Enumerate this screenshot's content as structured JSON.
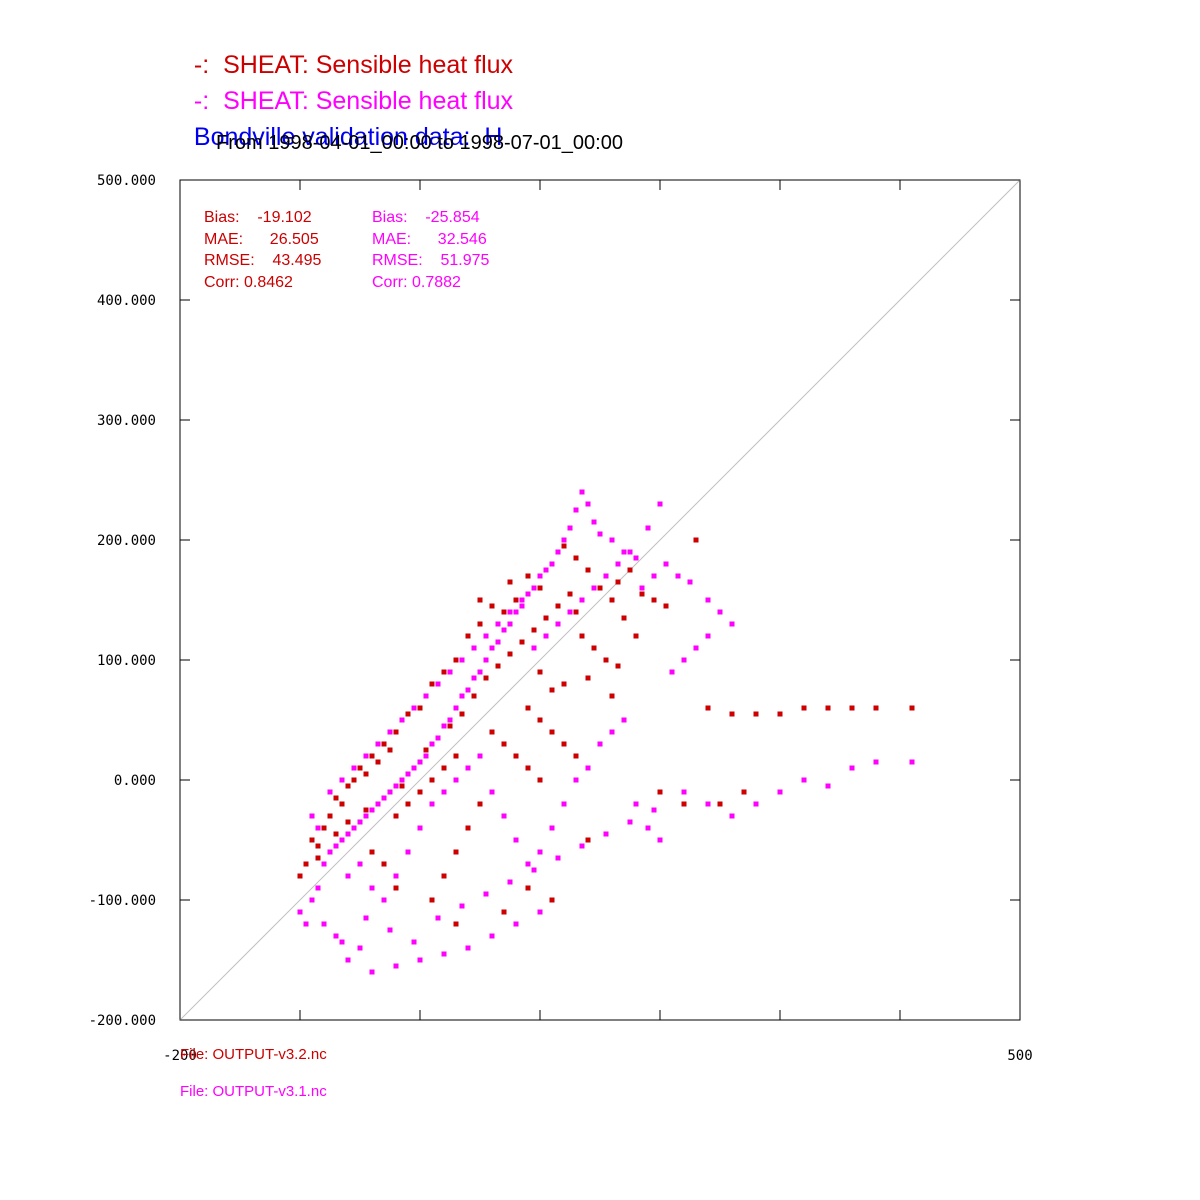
{
  "legend": {
    "series1": {
      "prefix": "-:",
      "label": "SHEAT: Sensible heat flux"
    },
    "series2": {
      "prefix": "-:",
      "label": "SHEAT: Sensible heat flux"
    },
    "obs": {
      "label": "Bondville validation data:  H"
    }
  },
  "subtitle": "From 1998-04-01_00:00 to 1998-07-01_00:00",
  "files": {
    "file1": "File: OUTPUT-v3.2.nc",
    "file2": "File: OUTPUT-v3.1.nc"
  },
  "stats": {
    "s1": {
      "bias": "Bias:    -19.102",
      "mae": "MAE:      26.505",
      "rmse": "RMSE:    43.495",
      "corr": "Corr: 0.8462"
    },
    "s2": {
      "bias": "Bias:    -25.854",
      "mae": "MAE:      32.546",
      "rmse": "RMSE:    51.975",
      "corr": "Corr: 0.7882"
    }
  },
  "colors": {
    "series1": "#cc0000",
    "series2": "#ff00ff",
    "obs": "#0000ee",
    "text": "#000000",
    "diagonal": "#c0c0c0"
  },
  "chart_data": {
    "type": "scatter",
    "xlim": [
      -200,
      500
    ],
    "ylim": [
      -200,
      500
    ],
    "x_tick_labels": [
      "-200",
      "500"
    ],
    "y_ticks": [
      500,
      400,
      300,
      200,
      100,
      0,
      -100,
      -200
    ],
    "y_tick_labels": [
      "500.000",
      "400.000",
      "300.000",
      "200.000",
      "100.000",
      "0.000",
      "-100.000",
      "-200.000"
    ],
    "diagonal": [
      [
        -200,
        -200
      ],
      [
        500,
        500
      ]
    ],
    "grid": false,
    "series": [
      {
        "name": "SHEAT: Sensible heat flux",
        "color": "#cc0000",
        "points": [
          [
            -100,
            -80
          ],
          [
            -95,
            -70
          ],
          [
            -90,
            -50
          ],
          [
            -85,
            -55
          ],
          [
            -80,
            -40
          ],
          [
            -75,
            -30
          ],
          [
            -70,
            -15
          ],
          [
            -65,
            -20
          ],
          [
            -60,
            -5
          ],
          [
            -55,
            0
          ],
          [
            -50,
            10
          ],
          [
            -45,
            5
          ],
          [
            -40,
            20
          ],
          [
            -35,
            15
          ],
          [
            -30,
            30
          ],
          [
            -25,
            25
          ],
          [
            -20,
            40
          ],
          [
            -10,
            55
          ],
          [
            0,
            60
          ],
          [
            10,
            80
          ],
          [
            20,
            90
          ],
          [
            30,
            100
          ],
          [
            40,
            120
          ],
          [
            50,
            130
          ],
          [
            60,
            110
          ],
          [
            70,
            140
          ],
          [
            80,
            150
          ],
          [
            90,
            170
          ],
          [
            100,
            160
          ],
          [
            110,
            180
          ],
          [
            120,
            195
          ],
          [
            130,
            185
          ],
          [
            140,
            175
          ],
          [
            150,
            160
          ],
          [
            160,
            150
          ],
          [
            170,
            135
          ],
          [
            180,
            120
          ],
          [
            100,
            90
          ],
          [
            110,
            75
          ],
          [
            120,
            80
          ],
          [
            140,
            85
          ],
          [
            160,
            70
          ],
          [
            60,
            40
          ],
          [
            70,
            30
          ],
          [
            80,
            20
          ],
          [
            90,
            10
          ],
          [
            100,
            0
          ],
          [
            50,
            -20
          ],
          [
            40,
            -40
          ],
          [
            30,
            -60
          ],
          [
            20,
            -80
          ],
          [
            -20,
            -30
          ],
          [
            -10,
            -20
          ],
          [
            0,
            -10
          ],
          [
            10,
            0
          ],
          [
            20,
            10
          ],
          [
            30,
            20
          ],
          [
            200,
            -10
          ],
          [
            220,
            -20
          ],
          [
            240,
            60
          ],
          [
            260,
            55
          ],
          [
            280,
            55
          ],
          [
            300,
            55
          ],
          [
            320,
            60
          ],
          [
            340,
            60
          ],
          [
            360,
            60
          ],
          [
            380,
            60
          ],
          [
            410,
            60
          ],
          [
            250,
            -20
          ],
          [
            270,
            -10
          ],
          [
            130,
            140
          ],
          [
            145,
            160
          ],
          [
            165,
            165
          ],
          [
            175,
            175
          ],
          [
            185,
            155
          ],
          [
            195,
            150
          ],
          [
            205,
            145
          ],
          [
            230,
            200
          ],
          [
            50,
            150
          ],
          [
            60,
            145
          ],
          [
            75,
            165
          ],
          [
            -85,
            -65
          ],
          [
            -70,
            -45
          ],
          [
            -60,
            -35
          ],
          [
            -45,
            -25
          ],
          [
            -30,
            -15
          ],
          [
            -15,
            -5
          ],
          [
            5,
            25
          ],
          [
            15,
            35
          ],
          [
            25,
            45
          ],
          [
            35,
            55
          ],
          [
            45,
            70
          ],
          [
            55,
            85
          ],
          [
            65,
            95
          ],
          [
            75,
            105
          ],
          [
            85,
            115
          ],
          [
            95,
            125
          ],
          [
            105,
            135
          ],
          [
            115,
            145
          ],
          [
            125,
            155
          ],
          [
            135,
            120
          ],
          [
            145,
            110
          ],
          [
            155,
            100
          ],
          [
            165,
            95
          ],
          [
            90,
            60
          ],
          [
            100,
            50
          ],
          [
            110,
            40
          ],
          [
            120,
            30
          ],
          [
            130,
            20
          ],
          [
            140,
            10
          ],
          [
            -40,
            -60
          ],
          [
            -30,
            -70
          ],
          [
            -20,
            -90
          ],
          [
            10,
            -100
          ],
          [
            30,
            -120
          ],
          [
            70,
            -110
          ],
          [
            90,
            -90
          ],
          [
            110,
            -100
          ],
          [
            140,
            -50
          ]
        ]
      },
      {
        "name": "SHEAT: Sensible heat flux",
        "color": "#ff00ff",
        "points": [
          [
            -100,
            -110
          ],
          [
            -95,
            -120
          ],
          [
            -90,
            -100
          ],
          [
            -85,
            -90
          ],
          [
            -80,
            -70
          ],
          [
            -75,
            -60
          ],
          [
            -70,
            -55
          ],
          [
            -65,
            -50
          ],
          [
            -60,
            -45
          ],
          [
            -55,
            -40
          ],
          [
            -50,
            -35
          ],
          [
            -45,
            -30
          ],
          [
            -40,
            -25
          ],
          [
            -35,
            -20
          ],
          [
            -30,
            -15
          ],
          [
            -25,
            -10
          ],
          [
            -20,
            -5
          ],
          [
            -15,
            0
          ],
          [
            -10,
            5
          ],
          [
            -5,
            10
          ],
          [
            0,
            15
          ],
          [
            5,
            20
          ],
          [
            10,
            30
          ],
          [
            15,
            35
          ],
          [
            20,
            45
          ],
          [
            25,
            50
          ],
          [
            30,
            60
          ],
          [
            35,
            70
          ],
          [
            40,
            75
          ],
          [
            45,
            85
          ],
          [
            50,
            90
          ],
          [
            55,
            100
          ],
          [
            60,
            110
          ],
          [
            65,
            115
          ],
          [
            70,
            125
          ],
          [
            75,
            130
          ],
          [
            80,
            140
          ],
          [
            85,
            145
          ],
          [
            90,
            155
          ],
          [
            95,
            160
          ],
          [
            100,
            170
          ],
          [
            105,
            175
          ],
          [
            110,
            180
          ],
          [
            115,
            190
          ],
          [
            120,
            200
          ],
          [
            125,
            210
          ],
          [
            130,
            225
          ],
          [
            135,
            240
          ],
          [
            140,
            230
          ],
          [
            145,
            215
          ],
          [
            150,
            205
          ],
          [
            160,
            200
          ],
          [
            170,
            190
          ],
          [
            180,
            185
          ],
          [
            190,
            210
          ],
          [
            200,
            230
          ],
          [
            -60,
            -150
          ],
          [
            -50,
            -140
          ],
          [
            -40,
            -160
          ],
          [
            -20,
            -155
          ],
          [
            0,
            -150
          ],
          [
            20,
            -145
          ],
          [
            40,
            -140
          ],
          [
            60,
            -130
          ],
          [
            80,
            -120
          ],
          [
            100,
            -110
          ],
          [
            -60,
            -80
          ],
          [
            -50,
            -70
          ],
          [
            -40,
            -90
          ],
          [
            -30,
            -100
          ],
          [
            -20,
            -80
          ],
          [
            -10,
            -60
          ],
          [
            0,
            -40
          ],
          [
            10,
            -20
          ],
          [
            20,
            -10
          ],
          [
            30,
            0
          ],
          [
            40,
            10
          ],
          [
            50,
            20
          ],
          [
            60,
            -10
          ],
          [
            70,
            -30
          ],
          [
            80,
            -50
          ],
          [
            90,
            -70
          ],
          [
            100,
            -60
          ],
          [
            110,
            -40
          ],
          [
            120,
            -20
          ],
          [
            130,
            0
          ],
          [
            140,
            10
          ],
          [
            150,
            30
          ],
          [
            160,
            40
          ],
          [
            170,
            50
          ],
          [
            180,
            -20
          ],
          [
            190,
            -40
          ],
          [
            200,
            -50
          ],
          [
            220,
            -10
          ],
          [
            240,
            -20
          ],
          [
            260,
            -30
          ],
          [
            280,
            -20
          ],
          [
            300,
            -10
          ],
          [
            320,
            0
          ],
          [
            340,
            -5
          ],
          [
            360,
            10
          ],
          [
            380,
            15
          ],
          [
            410,
            15
          ],
          [
            -70,
            -130
          ],
          [
            -80,
            -120
          ],
          [
            -65,
            -135
          ],
          [
            -45,
            -115
          ],
          [
            -25,
            -125
          ],
          [
            -5,
            -135
          ],
          [
            15,
            -115
          ],
          [
            35,
            -105
          ],
          [
            55,
            -95
          ],
          [
            75,
            -85
          ],
          [
            95,
            -75
          ],
          [
            115,
            -65
          ],
          [
            135,
            -55
          ],
          [
            155,
            -45
          ],
          [
            175,
            -35
          ],
          [
            195,
            -25
          ],
          [
            -90,
            -30
          ],
          [
            -85,
            -40
          ],
          [
            -75,
            -10
          ],
          [
            -65,
            0
          ],
          [
            -55,
            10
          ],
          [
            -45,
            20
          ],
          [
            -35,
            30
          ],
          [
            -25,
            40
          ],
          [
            -15,
            50
          ],
          [
            -5,
            60
          ],
          [
            5,
            70
          ],
          [
            15,
            80
          ],
          [
            25,
            90
          ],
          [
            35,
            100
          ],
          [
            45,
            110
          ],
          [
            55,
            120
          ],
          [
            65,
            130
          ],
          [
            75,
            140
          ],
          [
            85,
            150
          ],
          [
            95,
            110
          ],
          [
            105,
            120
          ],
          [
            115,
            130
          ],
          [
            125,
            140
          ],
          [
            135,
            150
          ],
          [
            145,
            160
          ],
          [
            155,
            170
          ],
          [
            165,
            180
          ],
          [
            175,
            190
          ],
          [
            185,
            160
          ],
          [
            195,
            170
          ],
          [
            205,
            180
          ],
          [
            215,
            170
          ],
          [
            225,
            165
          ],
          [
            240,
            150
          ],
          [
            250,
            140
          ],
          [
            260,
            130
          ],
          [
            240,
            120
          ],
          [
            230,
            110
          ],
          [
            220,
            100
          ],
          [
            210,
            90
          ]
        ]
      }
    ]
  }
}
